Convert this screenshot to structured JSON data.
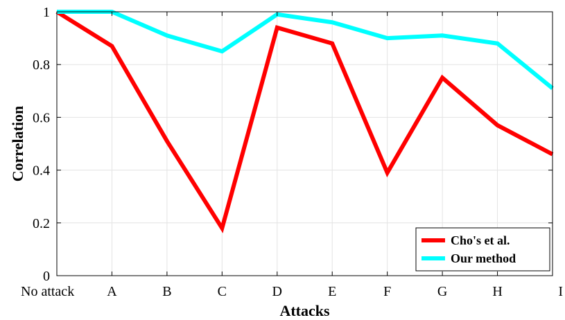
{
  "chart_data": {
    "type": "line",
    "categories": [
      "No attack",
      "A",
      "B",
      "C",
      "D",
      "E",
      "F",
      "G",
      "H",
      "I"
    ],
    "series": [
      {
        "name": "Cho's et al.",
        "color": "#ff0000",
        "values": [
          1.0,
          0.87,
          0.51,
          0.18,
          0.94,
          0.88,
          0.39,
          0.75,
          0.57,
          0.46
        ]
      },
      {
        "name": "Our method",
        "color": "#00ffff",
        "values": [
          1.0,
          1.0,
          0.91,
          0.85,
          0.99,
          0.96,
          0.9,
          0.91,
          0.88,
          0.71
        ]
      }
    ],
    "xlabel": "Attacks",
    "ylabel": "Correlation",
    "ylim": [
      0,
      1
    ],
    "yticks": [
      0,
      0.2,
      0.4,
      0.6,
      0.8,
      1
    ],
    "ytick_labels": [
      "0",
      "0.2",
      "0.4",
      "0.6",
      "0.8",
      "1"
    ],
    "grid": true,
    "legend_position": "bottom-right"
  }
}
